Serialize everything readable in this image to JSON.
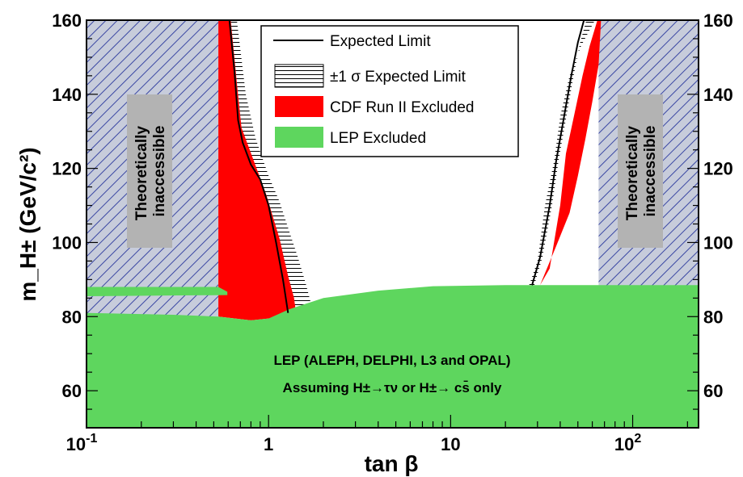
{
  "chart_data": {
    "type": "area",
    "xlabel": "tan β",
    "ylabel": "m_H± (GeV/c²)",
    "xscale": "log",
    "xlim": [
      0.1,
      230
    ],
    "ylim": [
      50,
      160
    ],
    "x_ticks": [
      {
        "value": 0.1,
        "label": "10",
        "sup": "-1"
      },
      {
        "value": 1,
        "label": "1",
        "sup": ""
      },
      {
        "value": 10,
        "label": "10",
        "sup": ""
      },
      {
        "value": 100,
        "label": "10",
        "sup": "2"
      }
    ],
    "y_ticks": [
      {
        "value": 60,
        "label": "60"
      },
      {
        "value": 80,
        "label": "80"
      },
      {
        "value": 100,
        "label": "100"
      },
      {
        "value": 120,
        "label": "120"
      },
      {
        "value": 140,
        "label": "140"
      },
      {
        "value": 160,
        "label": "160"
      }
    ],
    "legend": {
      "placement": "top-center",
      "entries": [
        {
          "label": "Expected Limit",
          "style": "line",
          "color": "#000000"
        },
        {
          "label": "±1 σ Expected Limit",
          "style": "hatch",
          "color": "#000000"
        },
        {
          "label": "CDF Run II Excluded",
          "style": "fill",
          "color": "#ff0000"
        },
        {
          "label": "LEP Excluded",
          "style": "fill",
          "color": "#5ed65e"
        }
      ]
    },
    "annotations": {
      "theoretical_label_left": [
        "Theoretically",
        "inaccessible"
      ],
      "theoretical_label_right": [
        "Theoretically",
        "inaccessible"
      ],
      "lep_line1": "LEP (ALEPH, DELPHI, L3 and OPAL)",
      "lep_line2": "Assuming H±→τν or H±→ cs̄ only"
    },
    "regions": {
      "theoretically_inaccessible_left": {
        "x": [
          0.1,
          0.53
        ],
        "y": [
          50,
          160
        ]
      },
      "theoretically_inaccessible_right": {
        "x": [
          65,
          230
        ],
        "y": [
          50,
          160
        ]
      },
      "lep_excluded_upper_edge": [
        [
          0.1,
          81
        ],
        [
          0.3,
          80.5
        ],
        [
          0.53,
          80
        ],
        [
          0.8,
          79
        ],
        [
          1.0,
          79.5
        ],
        [
          1.3,
          82
        ],
        [
          2,
          85
        ],
        [
          4,
          87
        ],
        [
          8,
          88.2
        ],
        [
          20,
          88.5
        ],
        [
          230,
          88.5
        ]
      ],
      "lep_excluded_strip": {
        "x": [
          0.1,
          0.53
        ],
        "y_low": 85.5,
        "y_high": 88
      },
      "cdf_excluded_low_tanb": [
        [
          0.53,
          160
        ],
        [
          0.62,
          160
        ],
        [
          0.67,
          143
        ],
        [
          0.71,
          131
        ],
        [
          0.83,
          122
        ],
        [
          0.97,
          113
        ],
        [
          1.15,
          101
        ],
        [
          1.28,
          91
        ],
        [
          1.38,
          85
        ],
        [
          1.42,
          80.5
        ],
        [
          1.3,
          80.3
        ],
        [
          1.0,
          79.5
        ],
        [
          0.8,
          79
        ],
        [
          0.53,
          80
        ]
      ],
      "cdf_excluded_high_tanb": [
        [
          31,
          88.5
        ],
        [
          35,
          93
        ],
        [
          40,
          110
        ],
        [
          43,
          124
        ],
        [
          48,
          135
        ],
        [
          53,
          145
        ],
        [
          58,
          153
        ],
        [
          64,
          160
        ],
        [
          67,
          160
        ],
        [
          65,
          148
        ],
        [
          60,
          138
        ],
        [
          55,
          128
        ],
        [
          50,
          118
        ],
        [
          45,
          108
        ],
        [
          38,
          99
        ],
        [
          31,
          88.5
        ]
      ]
    },
    "series": [
      {
        "name": "Expected Limit",
        "segment": "low tan β",
        "x": [
          0.61,
          0.65,
          0.68,
          0.72,
          0.8,
          0.9,
          1.0,
          1.1,
          1.2,
          1.28
        ],
        "y": [
          160,
          146,
          133,
          127,
          121,
          117,
          110,
          100,
          90,
          81
        ]
      },
      {
        "name": "Expected Limit",
        "segment": "high tan β",
        "x": [
          28,
          31,
          35,
          38,
          42,
          46,
          50,
          54
        ],
        "y": [
          88.5,
          96,
          110,
          122,
          134,
          145,
          154,
          160
        ]
      },
      {
        "name": "±1 σ Expected Limit",
        "segment": "low tan β, upper edge",
        "x": [
          0.67,
          0.75,
          0.85,
          1.0,
          1.15,
          1.3,
          1.45,
          1.6,
          1.7
        ],
        "y": [
          160,
          140,
          128,
          118,
          111,
          103,
          96,
          89,
          84
        ]
      },
      {
        "name": "±1 σ Expected Limit",
        "segment": "high tan β, lower edge",
        "x": [
          27,
          30,
          33,
          37,
          40,
          45,
          52,
          62
        ],
        "y": [
          88.5,
          95,
          110,
          122,
          134,
          145,
          153,
          160
        ]
      }
    ]
  }
}
